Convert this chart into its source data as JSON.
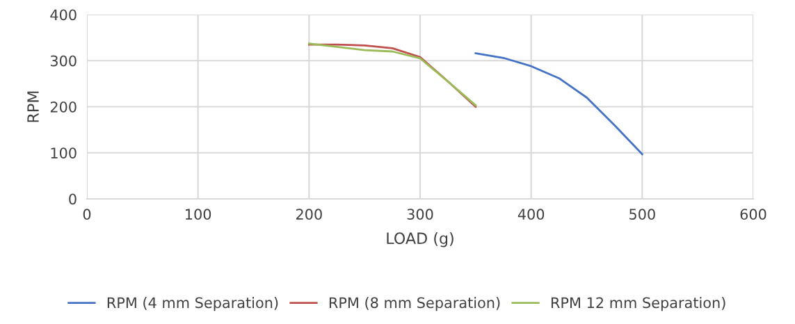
{
  "chart_data": {
    "type": "line",
    "xlabel": "LOAD (g)",
    "ylabel": "RPM",
    "xlim": [
      0,
      600
    ],
    "xticks": [
      0,
      100,
      200,
      300,
      400,
      500,
      600
    ],
    "ylim": [
      0,
      400
    ],
    "yticks": [
      0,
      100,
      200,
      300,
      400
    ],
    "grid": true,
    "legend": "bottom",
    "marker": "none",
    "line_style": "solid",
    "series": [
      {
        "name": "RPM (4 mm Separation)",
        "color": "#4472c4",
        "x": [
          350,
          375,
          400,
          425,
          450,
          475,
          500
        ],
        "values": [
          316,
          306,
          288,
          262,
          220,
          160,
          97
        ]
      },
      {
        "name": "RPM (8 mm Separation)",
        "color": "#c0504d",
        "x": [
          200,
          225,
          250,
          275,
          300,
          325,
          350
        ],
        "values": [
          335,
          335,
          333,
          327,
          308,
          255,
          200
        ]
      },
      {
        "name": "RPM 12 mm Separation)",
        "color": "#9bbb59",
        "x": [
          200,
          225,
          250,
          275,
          300,
          325,
          350
        ],
        "values": [
          337,
          330,
          323,
          320,
          305,
          255,
          203
        ]
      }
    ]
  }
}
